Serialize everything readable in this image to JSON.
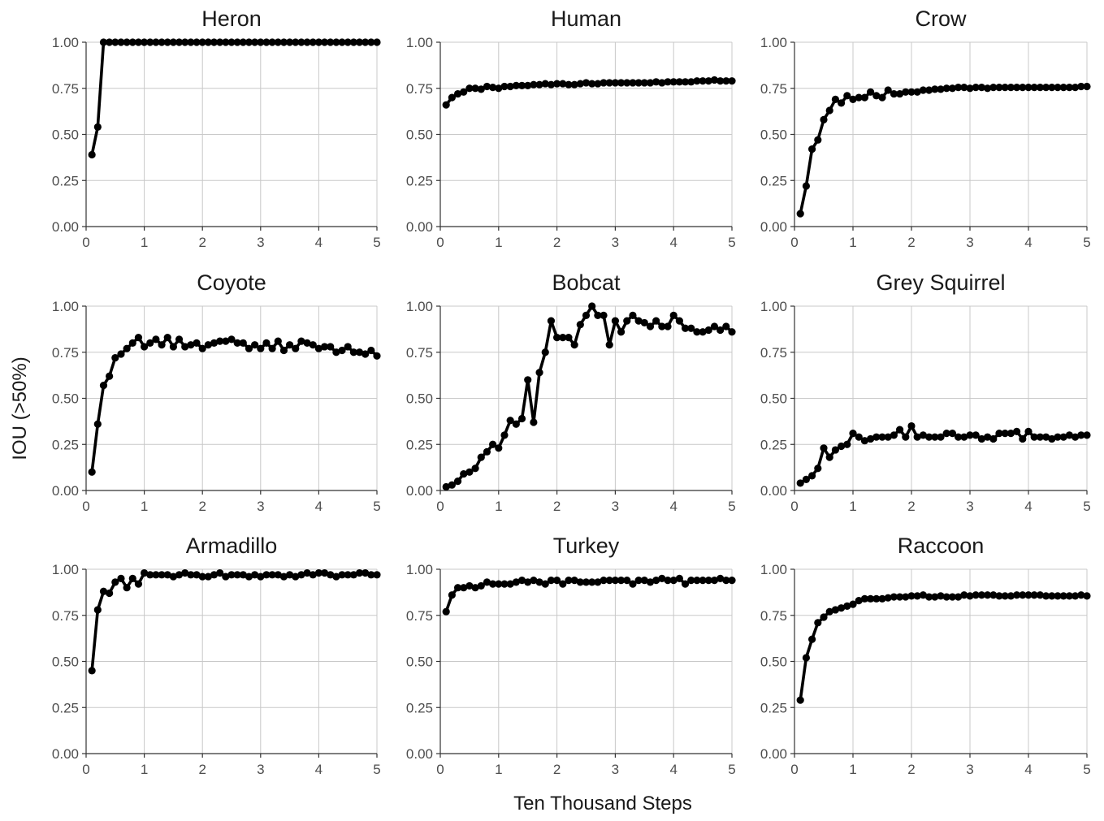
{
  "chart_data": {
    "type": "line",
    "layout": "facet-grid 3x3",
    "xlabel": "Ten Thousand Steps",
    "ylabel": "IOU (>50%)",
    "xlim": [
      0,
      5
    ],
    "ylim": [
      0,
      1
    ],
    "x_ticks": [
      "0",
      "1",
      "2",
      "3",
      "4",
      "5"
    ],
    "y_ticks": [
      "0.00",
      "0.25",
      "0.50",
      "0.75",
      "1.00"
    ],
    "grid": true,
    "colors": {
      "series": "#000000",
      "grid": "#c8c8c8"
    },
    "x_step": 0.1,
    "x_start": 0.1,
    "panels": [
      {
        "title": "Heron",
        "values": [
          0.39,
          0.54,
          1.0,
          1.0,
          1.0,
          1.0,
          1.0,
          1.0,
          1.0,
          1.0,
          1.0,
          1.0,
          1.0,
          1.0,
          1.0,
          1.0,
          1.0,
          1.0,
          1.0,
          1.0,
          1.0,
          1.0,
          1.0,
          1.0,
          1.0,
          1.0,
          1.0,
          1.0,
          1.0,
          1.0,
          1.0,
          1.0,
          1.0,
          1.0,
          1.0,
          1.0,
          1.0,
          1.0,
          1.0,
          1.0,
          1.0,
          1.0,
          1.0,
          1.0,
          1.0,
          1.0,
          1.0,
          1.0,
          1.0,
          1.0
        ]
      },
      {
        "title": "Human",
        "values": [
          0.66,
          0.7,
          0.72,
          0.73,
          0.75,
          0.75,
          0.745,
          0.76,
          0.755,
          0.75,
          0.76,
          0.76,
          0.765,
          0.765,
          0.765,
          0.77,
          0.77,
          0.775,
          0.77,
          0.775,
          0.775,
          0.77,
          0.77,
          0.775,
          0.78,
          0.775,
          0.775,
          0.78,
          0.78,
          0.78,
          0.78,
          0.78,
          0.78,
          0.78,
          0.78,
          0.78,
          0.785,
          0.78,
          0.785,
          0.785,
          0.785,
          0.785,
          0.785,
          0.79,
          0.79,
          0.79,
          0.795,
          0.79,
          0.79,
          0.79
        ]
      },
      {
        "title": "Crow",
        "values": [
          0.07,
          0.22,
          0.42,
          0.47,
          0.58,
          0.63,
          0.69,
          0.67,
          0.71,
          0.69,
          0.7,
          0.7,
          0.73,
          0.71,
          0.7,
          0.74,
          0.72,
          0.72,
          0.73,
          0.73,
          0.73,
          0.74,
          0.74,
          0.745,
          0.745,
          0.75,
          0.75,
          0.755,
          0.755,
          0.75,
          0.755,
          0.755,
          0.75,
          0.755,
          0.755,
          0.755,
          0.755,
          0.755,
          0.755,
          0.755,
          0.755,
          0.755,
          0.755,
          0.755,
          0.755,
          0.755,
          0.755,
          0.755,
          0.76,
          0.76
        ]
      },
      {
        "title": "Coyote",
        "values": [
          0.1,
          0.36,
          0.57,
          0.62,
          0.72,
          0.74,
          0.77,
          0.8,
          0.83,
          0.78,
          0.8,
          0.82,
          0.79,
          0.83,
          0.78,
          0.82,
          0.78,
          0.79,
          0.8,
          0.77,
          0.79,
          0.8,
          0.81,
          0.81,
          0.82,
          0.8,
          0.8,
          0.77,
          0.79,
          0.77,
          0.8,
          0.77,
          0.81,
          0.76,
          0.79,
          0.77,
          0.81,
          0.8,
          0.79,
          0.77,
          0.78,
          0.78,
          0.75,
          0.76,
          0.78,
          0.75,
          0.75,
          0.74,
          0.76,
          0.73
        ]
      },
      {
        "title": "Bobcat",
        "values": [
          0.02,
          0.03,
          0.05,
          0.09,
          0.1,
          0.12,
          0.18,
          0.21,
          0.25,
          0.23,
          0.3,
          0.38,
          0.36,
          0.39,
          0.6,
          0.37,
          0.64,
          0.75,
          0.92,
          0.83,
          0.83,
          0.83,
          0.79,
          0.9,
          0.95,
          1.0,
          0.95,
          0.95,
          0.79,
          0.92,
          0.86,
          0.92,
          0.95,
          0.92,
          0.91,
          0.89,
          0.92,
          0.89,
          0.89,
          0.95,
          0.92,
          0.88,
          0.88,
          0.86,
          0.86,
          0.87,
          0.89,
          0.87,
          0.89,
          0.86
        ]
      },
      {
        "title": "Grey Squirrel",
        "values": [
          0.04,
          0.06,
          0.08,
          0.12,
          0.23,
          0.18,
          0.22,
          0.24,
          0.25,
          0.31,
          0.29,
          0.27,
          0.28,
          0.29,
          0.29,
          0.29,
          0.3,
          0.33,
          0.29,
          0.35,
          0.29,
          0.3,
          0.29,
          0.29,
          0.29,
          0.31,
          0.31,
          0.29,
          0.29,
          0.3,
          0.3,
          0.28,
          0.29,
          0.28,
          0.31,
          0.31,
          0.31,
          0.32,
          0.28,
          0.32,
          0.29,
          0.29,
          0.29,
          0.28,
          0.29,
          0.29,
          0.3,
          0.29,
          0.3,
          0.3
        ]
      },
      {
        "title": "Armadillo",
        "values": [
          0.45,
          0.78,
          0.88,
          0.87,
          0.93,
          0.95,
          0.9,
          0.95,
          0.92,
          0.98,
          0.97,
          0.97,
          0.97,
          0.97,
          0.96,
          0.97,
          0.98,
          0.97,
          0.97,
          0.96,
          0.96,
          0.97,
          0.98,
          0.96,
          0.97,
          0.97,
          0.97,
          0.96,
          0.97,
          0.96,
          0.97,
          0.97,
          0.97,
          0.96,
          0.97,
          0.96,
          0.97,
          0.98,
          0.97,
          0.98,
          0.98,
          0.97,
          0.96,
          0.97,
          0.97,
          0.97,
          0.98,
          0.98,
          0.97,
          0.97
        ]
      },
      {
        "title": "Turkey",
        "values": [
          0.77,
          0.86,
          0.9,
          0.9,
          0.91,
          0.9,
          0.91,
          0.93,
          0.92,
          0.92,
          0.92,
          0.92,
          0.93,
          0.94,
          0.93,
          0.94,
          0.93,
          0.92,
          0.94,
          0.94,
          0.92,
          0.94,
          0.94,
          0.93,
          0.93,
          0.93,
          0.93,
          0.94,
          0.94,
          0.94,
          0.94,
          0.94,
          0.92,
          0.94,
          0.94,
          0.93,
          0.94,
          0.95,
          0.94,
          0.94,
          0.95,
          0.92,
          0.94,
          0.94,
          0.94,
          0.94,
          0.94,
          0.95,
          0.94,
          0.94
        ]
      },
      {
        "title": "Raccoon",
        "values": [
          0.29,
          0.52,
          0.62,
          0.71,
          0.74,
          0.77,
          0.78,
          0.79,
          0.8,
          0.81,
          0.83,
          0.84,
          0.84,
          0.84,
          0.84,
          0.845,
          0.85,
          0.85,
          0.85,
          0.855,
          0.855,
          0.86,
          0.85,
          0.85,
          0.855,
          0.85,
          0.85,
          0.85,
          0.86,
          0.855,
          0.86,
          0.86,
          0.86,
          0.86,
          0.855,
          0.855,
          0.855,
          0.86,
          0.86,
          0.86,
          0.86,
          0.86,
          0.855,
          0.855,
          0.855,
          0.855,
          0.855,
          0.855,
          0.86,
          0.855
        ]
      }
    ]
  }
}
